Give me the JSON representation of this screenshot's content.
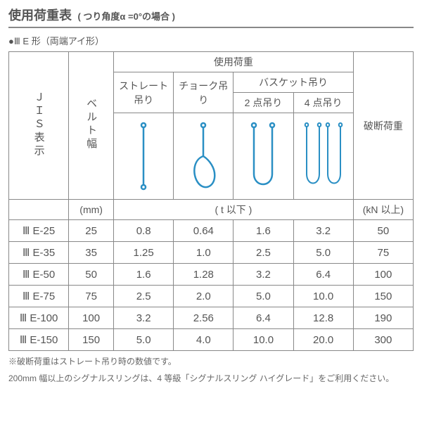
{
  "title": "使用荷重表",
  "subtitle": "( つり角度α =0°の場合 )",
  "form_label": "●Ⅲ E 形（両端アイ形）",
  "headers": {
    "jis": "ＪＩＳ表示",
    "belt": "ベルト幅",
    "use_load": "使用荷重",
    "straight": "ストレート吊り",
    "choke": "チョーク吊り",
    "basket": "バスケット吊り",
    "pt2": "2 点吊り",
    "pt4": "4 点吊り",
    "break": "破断荷重"
  },
  "units": {
    "belt": "(mm)",
    "load": "( t 以下 )",
    "break": "(kN 以上)"
  },
  "rows": [
    {
      "jis": "Ⅲ E-25",
      "belt": "25",
      "straight": "0.8",
      "choke": "0.64",
      "pt2": "1.6",
      "pt4": "3.2",
      "break": "50"
    },
    {
      "jis": "Ⅲ E-35",
      "belt": "35",
      "straight": "1.25",
      "choke": "1.0",
      "pt2": "2.5",
      "pt4": "5.0",
      "break": "75"
    },
    {
      "jis": "Ⅲ E-50",
      "belt": "50",
      "straight": "1.6",
      "choke": "1.28",
      "pt2": "3.2",
      "pt4": "6.4",
      "break": "100"
    },
    {
      "jis": "Ⅲ E-75",
      "belt": "75",
      "straight": "2.5",
      "choke": "2.0",
      "pt2": "5.0",
      "pt4": "10.0",
      "break": "150"
    },
    {
      "jis": "Ⅲ E-100",
      "belt": "100",
      "straight": "3.2",
      "choke": "2.56",
      "pt2": "6.4",
      "pt4": "12.8",
      "break": "190"
    },
    {
      "jis": "Ⅲ E-150",
      "belt": "150",
      "straight": "5.0",
      "choke": "4.0",
      "pt2": "10.0",
      "pt4": "20.0",
      "break": "300"
    }
  ],
  "footnote1": "※破断荷重はストレート吊り時の数値です。",
  "footnote2": "200mm 幅以上のシグナルスリングは、4 等級「シグナルスリング ハイグレード」をご利用ください。",
  "colors": {
    "sling": "#2a8fc4",
    "text": "#555555",
    "border": "#888888"
  }
}
